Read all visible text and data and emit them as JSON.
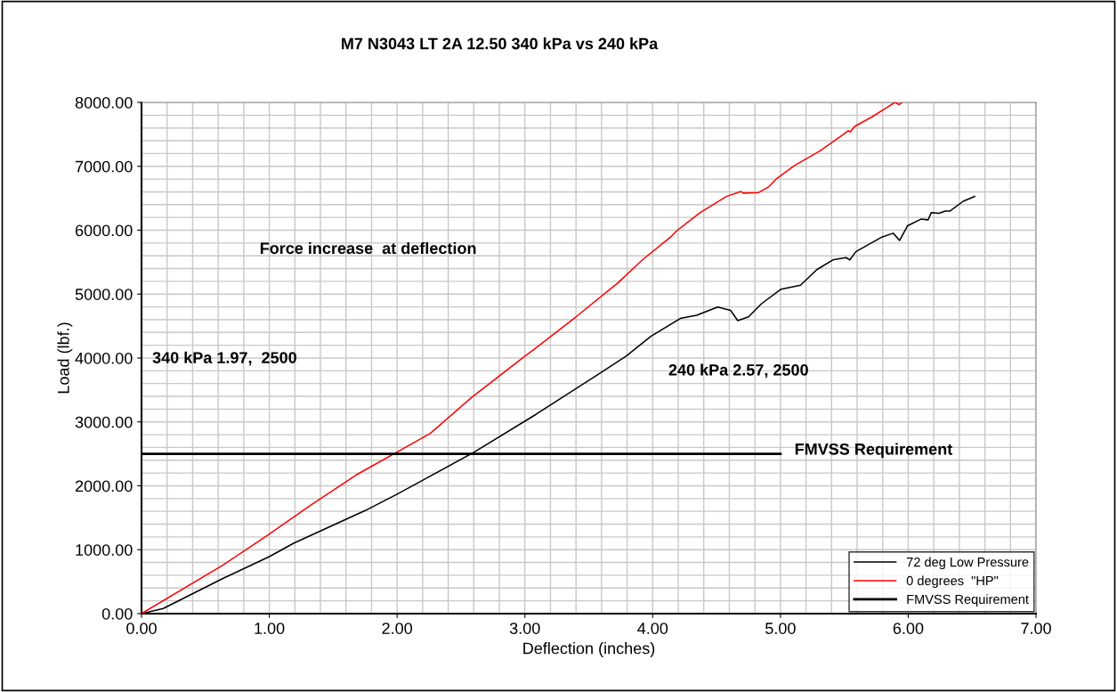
{
  "chart_data": {
    "type": "line",
    "title": "M7 N3043 LT 2A 12.50 340 kPa vs 240 kPa",
    "xlabel": "Deflection (inches)",
    "ylabel": "Load (lbf.)",
    "series": [
      {
        "name": "72 deg Low Pressure",
        "color": "#000000",
        "x": [
          0,
          0.17,
          0.63,
          1.0,
          1.19,
          1.75,
          2.0,
          2.17,
          2.595,
          3.09,
          3.56,
          3.795,
          3.986,
          4.216,
          4.344,
          4.509,
          4.61,
          4.666,
          4.75,
          4.852,
          5.005,
          5.157,
          5.285,
          5.41,
          5.513,
          5.543,
          5.59,
          5.794,
          5.882,
          5.933,
          5.995,
          6.099,
          6.155,
          6.18,
          6.24,
          6.29,
          6.328,
          6.43,
          6.52
        ],
        "values": [
          0,
          79,
          543,
          892,
          1101,
          1612,
          1868,
          2053,
          2518,
          3122,
          3725,
          4033,
          4339,
          4619,
          4669,
          4797,
          4745,
          4585,
          4644,
          4850,
          5077,
          5139,
          5383,
          5536,
          5571,
          5536,
          5663,
          5893,
          5953,
          5841,
          6070,
          6173,
          6162,
          6274,
          6264,
          6300,
          6300,
          6453,
          6528
        ]
      },
      {
        "name": "0 degrees  \"HP\"",
        "color": "#ff0000",
        "x": [
          0,
          0.633,
          0.98,
          1.33,
          1.68,
          1.99,
          2.26,
          2.58,
          3.0,
          3.071,
          3.4,
          3.73,
          3.92,
          4.14,
          4.19,
          4.37,
          4.577,
          4.69,
          4.71,
          4.83,
          4.91,
          4.97,
          5.11,
          5.31,
          5.49,
          5.53,
          5.547,
          5.58,
          5.72,
          5.82,
          5.895,
          5.93,
          5.95
        ],
        "values": [
          0,
          753,
          1217,
          1705,
          2170,
          2518,
          2820,
          3377,
          4028,
          4135,
          4644,
          5179,
          5536,
          5893,
          5993,
          6274,
          6528,
          6605,
          6580,
          6590,
          6682,
          6808,
          7012,
          7242,
          7495,
          7557,
          7537,
          7624,
          7777,
          7904,
          8000,
          7965,
          8000
        ]
      },
      {
        "name": "FMVSS Requirement",
        "color": "#000000",
        "x": [
          0,
          5
        ],
        "values": [
          2500,
          2500
        ]
      }
    ],
    "annotations": [
      "Force increase  at deflection",
      "340 kPa 1.97,  2500",
      "240 kPa 2.57, 2500",
      "FMVSS Requirement"
    ],
    "xlim": [
      0,
      7
    ],
    "xticks": [
      {
        "value": 0,
        "label": "0.00"
      },
      {
        "value": 1,
        "label": "1.00"
      },
      {
        "value": 2,
        "label": "2.00"
      },
      {
        "value": 3,
        "label": "3.00"
      },
      {
        "value": 4,
        "label": "4.00"
      },
      {
        "value": 5,
        "label": "5.00"
      },
      {
        "value": 6,
        "label": "6.00"
      },
      {
        "value": 7,
        "label": "7.00"
      }
    ],
    "ylim": [
      0,
      8000
    ],
    "yticks": [
      {
        "value": 0,
        "label": "0.00"
      },
      {
        "value": 1000,
        "label": "1000.00"
      },
      {
        "value": 2000,
        "label": "2000.00"
      },
      {
        "value": 3000,
        "label": "3000.00"
      },
      {
        "value": 4000,
        "label": "4000.00"
      },
      {
        "value": 5000,
        "label": "5000.00"
      },
      {
        "value": 6000,
        "label": "6000.00"
      },
      {
        "value": 7000,
        "label": "7000.00"
      },
      {
        "value": 8000,
        "label": "8000.00"
      }
    ],
    "grid": true,
    "legend": "bottom right",
    "marker": "none",
    "line_style": "solid"
  }
}
